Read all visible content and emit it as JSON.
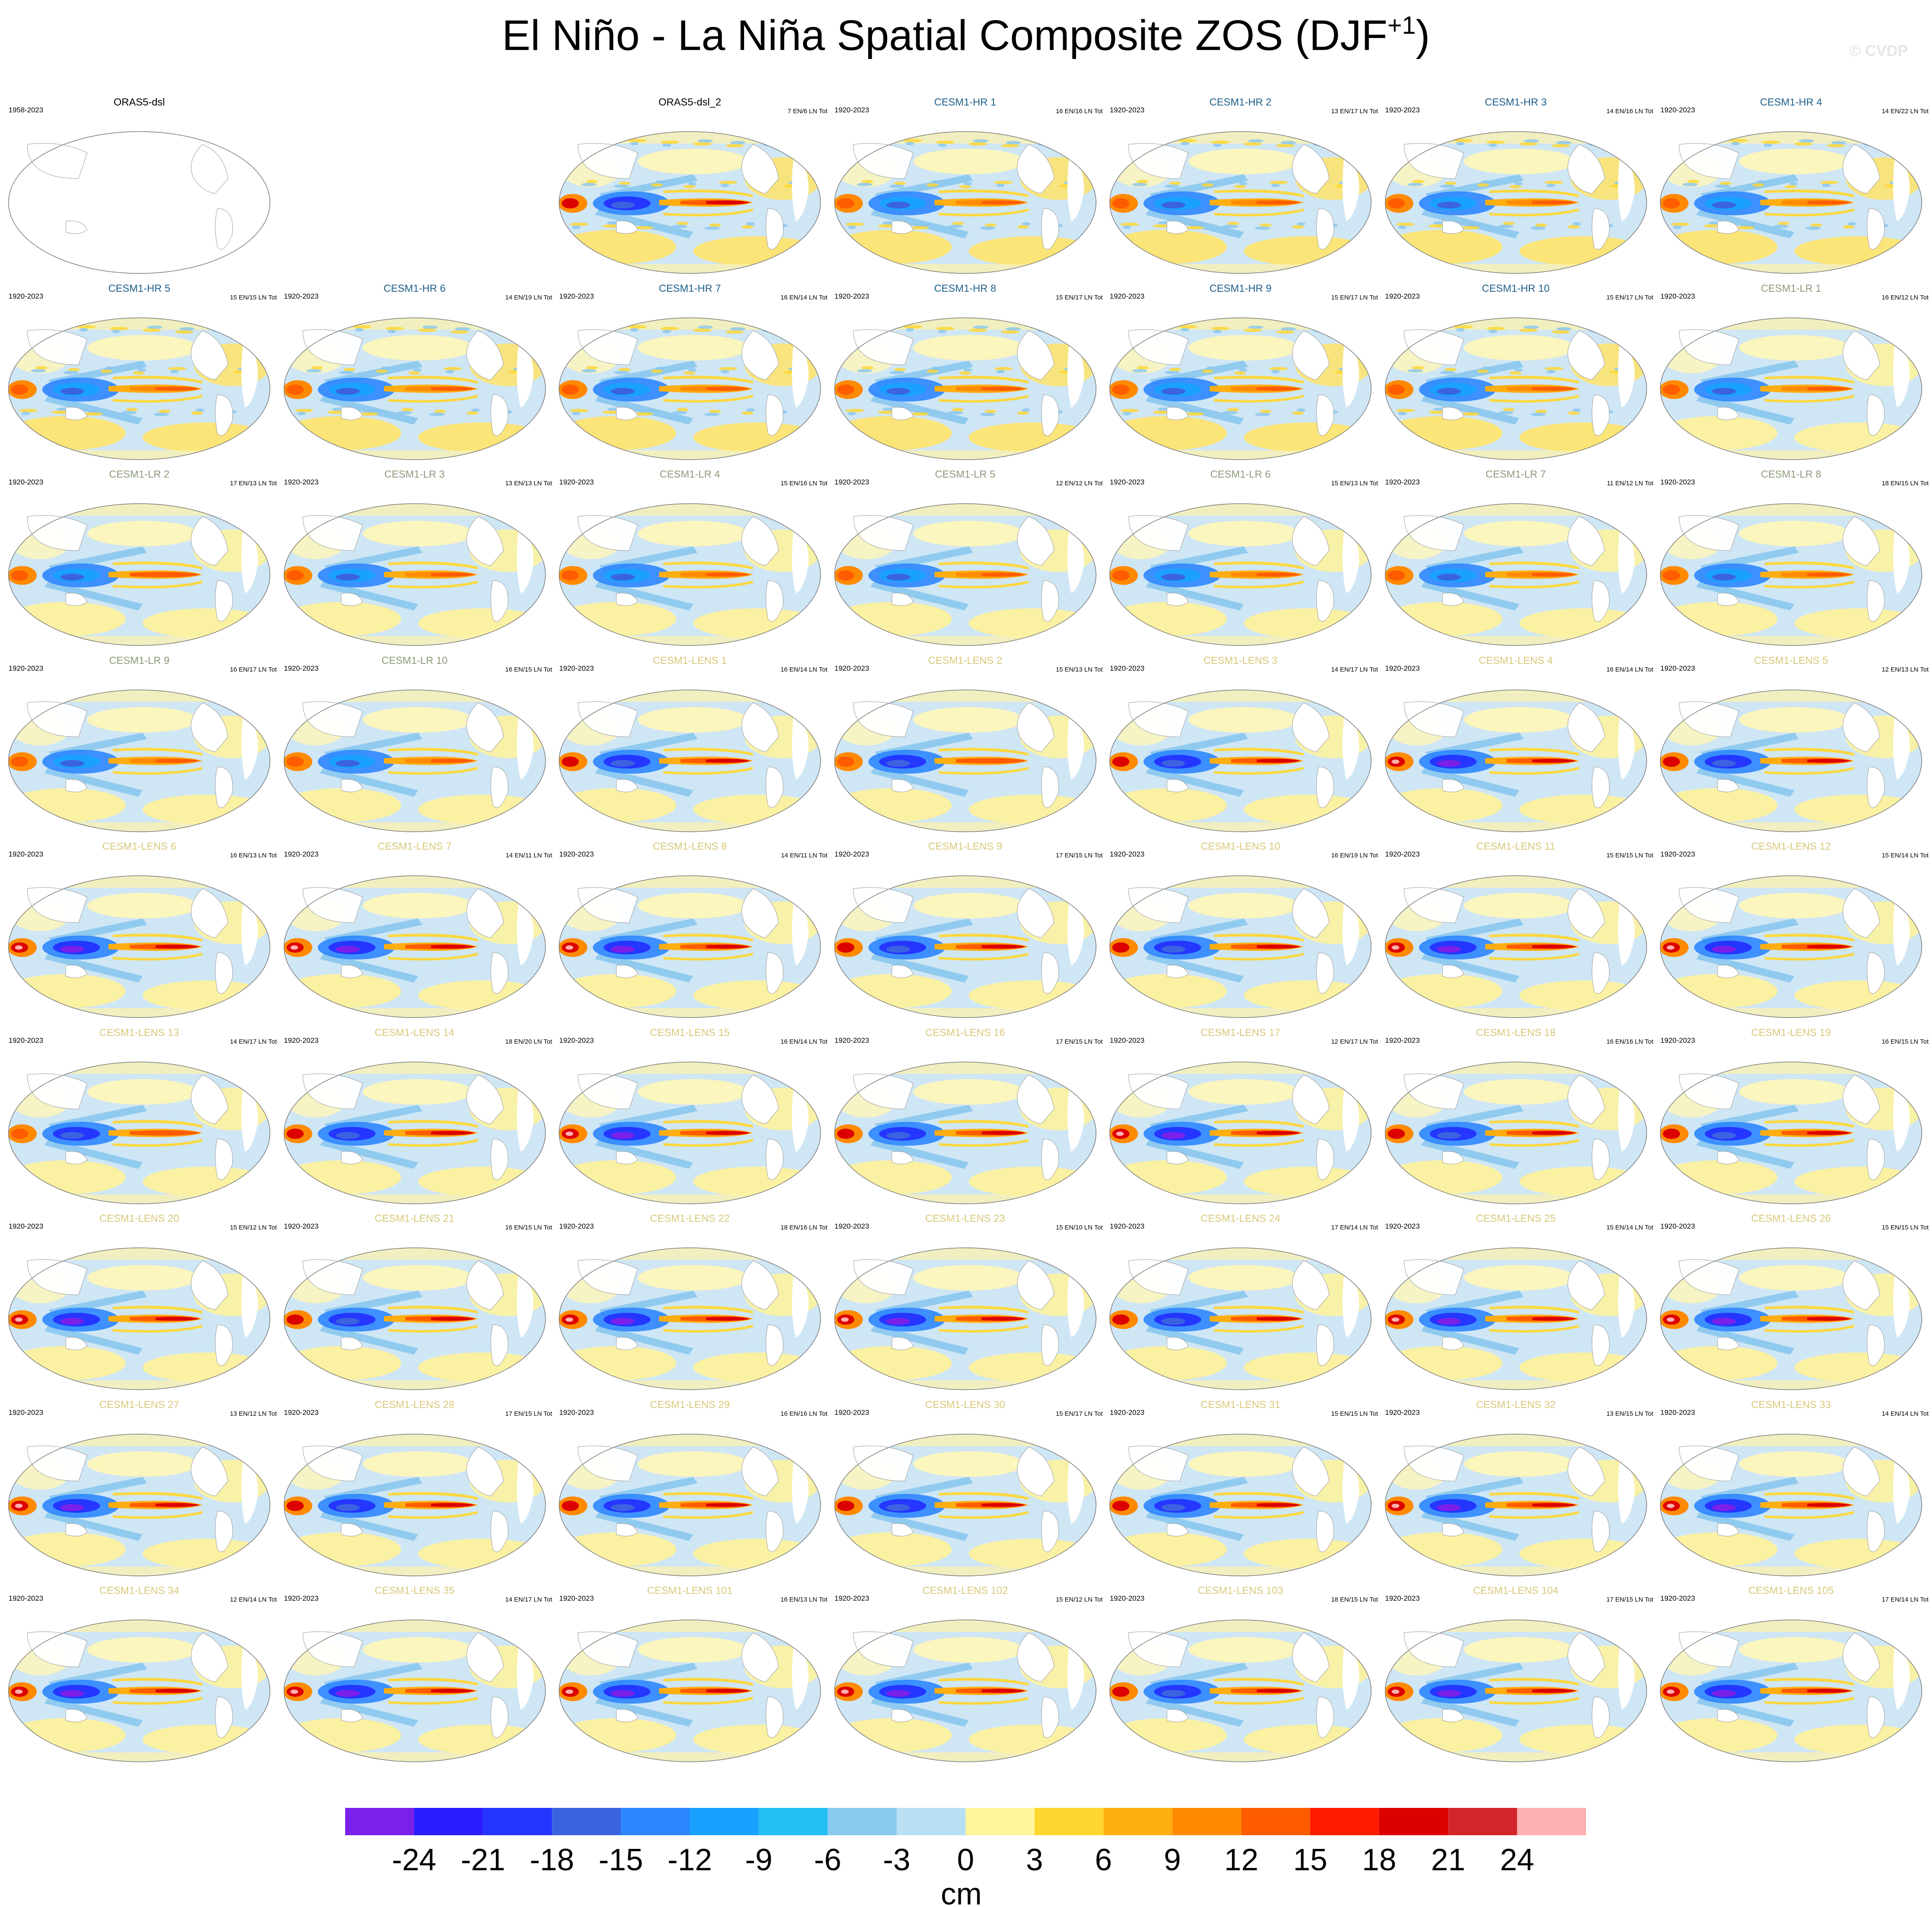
{
  "title": {
    "main": "El Niño - La Niña Spatial Composite ZOS (DJF",
    "superscript": "+1",
    "close": ")"
  },
  "watermark": "© CVDP",
  "colors": {
    "cesm1_hr": "#1f5f8a",
    "cesm1_lr": "#8c9a7a",
    "cesm1_lens": "#d8c87a",
    "observation": "#000000"
  },
  "chart_data": {
    "type": "heatmap",
    "variable": "ZOS",
    "season": "DJF+1",
    "units": "cm",
    "map_projection": "global ellipse (Pacific-centered)",
    "colorbar": {
      "ticks": [
        -24,
        -21,
        -18,
        -15,
        -12,
        -9,
        -6,
        -3,
        0,
        3,
        6,
        9,
        12,
        15,
        18,
        21,
        24
      ],
      "colors": [
        "#7a20e8",
        "#2a1cff",
        "#2436ff",
        "#3b63e0",
        "#2c86ff",
        "#1aa0ff",
        "#24bff5",
        "#88cbef",
        "#b9dff3",
        "#fff59a",
        "#ffd62e",
        "#ffae12",
        "#ff8a00",
        "#ff5c00",
        "#ff1a00",
        "#dc0000",
        "#d0262a",
        "#ffb0b0"
      ],
      "label": "cm"
    },
    "panels": [
      {
        "name": "ORAS5-dsl",
        "years": "1958-2023",
        "counts": "",
        "group": "observation",
        "empty": true
      },
      {
        "name": "ORAS5-dsl_2",
        "years": "",
        "counts": "7 EN/6 LN Tot",
        "group": "observation",
        "empty": false,
        "strength": 0.85
      },
      {
        "name": "CESM1-HR 1",
        "years": "1920-2023",
        "counts": "16 EN/16 LN Tot",
        "group": "cesm1_hr",
        "empty": false,
        "strength": 0.55
      },
      {
        "name": "CESM1-HR 2",
        "years": "1920-2023",
        "counts": "13 EN/17 LN Tot",
        "group": "cesm1_hr",
        "empty": false,
        "strength": 0.5
      },
      {
        "name": "CESM1-HR 3",
        "years": "1920-2023",
        "counts": "14 EN/16 LN Tot",
        "group": "cesm1_hr",
        "empty": false,
        "strength": 0.55
      },
      {
        "name": "CESM1-HR 4",
        "years": "1920-2023",
        "counts": "14 EN/22 LN Tot",
        "group": "cesm1_hr",
        "empty": false,
        "strength": 0.55
      },
      {
        "name": "CESM1-HR 5",
        "years": "1920-2023",
        "counts": "15 EN/15 LN Tot",
        "group": "cesm1_hr",
        "empty": false,
        "strength": 0.55
      },
      {
        "name": "CESM1-HR 6",
        "years": "1920-2023",
        "counts": "14 EN/19 LN Tot",
        "group": "cesm1_hr",
        "empty": false,
        "strength": 0.5
      },
      {
        "name": "CESM1-HR 7",
        "years": "1920-2023",
        "counts": "16 EN/14 LN Tot",
        "group": "cesm1_hr",
        "empty": false,
        "strength": 0.55
      },
      {
        "name": "CESM1-HR 8",
        "years": "1920-2023",
        "counts": "15 EN/17 LN Tot",
        "group": "cesm1_hr",
        "empty": false,
        "strength": 0.5
      },
      {
        "name": "CESM1-HR 9",
        "years": "1920-2023",
        "counts": "15 EN/17 LN Tot",
        "group": "cesm1_hr",
        "empty": false,
        "strength": 0.55
      },
      {
        "name": "CESM1-HR 10",
        "years": "1920-2023",
        "counts": "15 EN/17 LN Tot",
        "group": "cesm1_hr",
        "empty": false,
        "strength": 0.55
      },
      {
        "name": "CESM1-LR 1",
        "years": "1920-2023",
        "counts": "16 EN/12 LN Tot",
        "group": "cesm1_lr",
        "empty": false,
        "strength": 0.5
      },
      {
        "name": "CESM1-LR 2",
        "years": "1920-2023",
        "counts": "17 EN/13 LN Tot",
        "group": "cesm1_lr",
        "empty": false,
        "strength": 0.75
      },
      {
        "name": "CESM1-LR 3",
        "years": "1920-2023",
        "counts": "13 EN/13 LN Tot",
        "group": "cesm1_lr",
        "empty": false,
        "strength": 0.7
      },
      {
        "name": "CESM1-LR 4",
        "years": "1920-2023",
        "counts": "15 EN/16 LN Tot",
        "group": "cesm1_lr",
        "empty": false,
        "strength": 0.6
      },
      {
        "name": "CESM1-LR 5",
        "years": "1920-2023",
        "counts": "12 EN/12 LN Tot",
        "group": "cesm1_lr",
        "empty": false,
        "strength": 0.65
      },
      {
        "name": "CESM1-LR 6",
        "years": "1920-2023",
        "counts": "15 EN/13 LN Tot",
        "group": "cesm1_lr",
        "empty": false,
        "strength": 0.6
      },
      {
        "name": "CESM1-LR 7",
        "years": "1920-2023",
        "counts": "11 EN/12 LN Tot",
        "group": "cesm1_lr",
        "empty": false,
        "strength": 0.6
      },
      {
        "name": "CESM1-LR 8",
        "years": "1920-2023",
        "counts": "18 EN/15 LN Tot",
        "group": "cesm1_lr",
        "empty": false,
        "strength": 0.65
      },
      {
        "name": "CESM1-LR 9",
        "years": "1920-2023",
        "counts": "16 EN/17 LN Tot",
        "group": "cesm1_lr",
        "empty": false,
        "strength": 0.7
      },
      {
        "name": "CESM1-LR 10",
        "years": "1920-2023",
        "counts": "16 EN/15 LN Tot",
        "group": "cesm1_lr",
        "empty": false,
        "strength": 0.7
      },
      {
        "name": "CESM1-LENS 1",
        "years": "1920-2023",
        "counts": "16 EN/14 LN Tot",
        "group": "cesm1_lens",
        "empty": false,
        "strength": 0.85
      },
      {
        "name": "CESM1-LENS 2",
        "years": "1920-2023",
        "counts": "15 EN/13 LN Tot",
        "group": "cesm1_lens",
        "empty": false,
        "strength": 0.8
      },
      {
        "name": "CESM1-LENS 3",
        "years": "1920-2023",
        "counts": "14 EN/17 LN Tot",
        "group": "cesm1_lens",
        "empty": false,
        "strength": 0.85
      },
      {
        "name": "CESM1-LENS 4",
        "years": "1920-2023",
        "counts": "16 EN/14 LN Tot",
        "group": "cesm1_lens",
        "empty": false,
        "strength": 0.9
      },
      {
        "name": "CESM1-LENS 5",
        "years": "1920-2023",
        "counts": "12 EN/13 LN Tot",
        "group": "cesm1_lens",
        "empty": false,
        "strength": 0.85
      },
      {
        "name": "CESM1-LENS 6",
        "years": "1920-2023",
        "counts": "16 EN/13 LN Tot",
        "group": "cesm1_lens",
        "empty": false,
        "strength": 0.9
      },
      {
        "name": "CESM1-LENS 7",
        "years": "1920-2023",
        "counts": "14 EN/11 LN Tot",
        "group": "cesm1_lens",
        "empty": false,
        "strength": 0.9
      },
      {
        "name": "CESM1-LENS 8",
        "years": "1920-2023",
        "counts": "14 EN/11 LN Tot",
        "group": "cesm1_lens",
        "empty": false,
        "strength": 0.9
      },
      {
        "name": "CESM1-LENS 9",
        "years": "1920-2023",
        "counts": "17 EN/15 LN Tot",
        "group": "cesm1_lens",
        "empty": false,
        "strength": 0.85
      },
      {
        "name": "CESM1-LENS 10",
        "years": "1920-2023",
        "counts": "16 EN/19 LN Tot",
        "group": "cesm1_lens",
        "empty": false,
        "strength": 0.85
      },
      {
        "name": "CESM1-LENS 11",
        "years": "1920-2023",
        "counts": "15 EN/15 LN Tot",
        "group": "cesm1_lens",
        "empty": false,
        "strength": 0.9
      },
      {
        "name": "CESM1-LENS 12",
        "years": "1920-2023",
        "counts": "15 EN/14 LN Tot",
        "group": "cesm1_lens",
        "empty": false,
        "strength": 0.9
      },
      {
        "name": "CESM1-LENS 13",
        "years": "1920-2023",
        "counts": "14 EN/17 LN Tot",
        "group": "cesm1_lens",
        "empty": false,
        "strength": 0.8
      },
      {
        "name": "CESM1-LENS 14",
        "years": "1920-2023",
        "counts": "18 EN/20 LN Tot",
        "group": "cesm1_lens",
        "empty": false,
        "strength": 0.85
      },
      {
        "name": "CESM1-LENS 15",
        "years": "1920-2023",
        "counts": "16 EN/14 LN Tot",
        "group": "cesm1_lens",
        "empty": false,
        "strength": 0.9
      },
      {
        "name": "CESM1-LENS 16",
        "years": "1920-2023",
        "counts": "17 EN/15 LN Tot",
        "group": "cesm1_lens",
        "empty": false,
        "strength": 0.85
      },
      {
        "name": "CESM1-LENS 17",
        "years": "1920-2023",
        "counts": "12 EN/17 LN Tot",
        "group": "cesm1_lens",
        "empty": false,
        "strength": 0.95
      },
      {
        "name": "CESM1-LENS 18",
        "years": "1920-2023",
        "counts": "16 EN/16 LN Tot",
        "group": "cesm1_lens",
        "empty": false,
        "strength": 0.85
      },
      {
        "name": "CESM1-LENS 19",
        "years": "1920-2023",
        "counts": "16 EN/15 LN Tot",
        "group": "cesm1_lens",
        "empty": false,
        "strength": 0.85
      },
      {
        "name": "CESM1-LENS 20",
        "years": "1920-2023",
        "counts": "15 EN/12 LN Tot",
        "group": "cesm1_lens",
        "empty": false,
        "strength": 0.9
      },
      {
        "name": "CESM1-LENS 21",
        "years": "1920-2023",
        "counts": "16 EN/15 LN Tot",
        "group": "cesm1_lens",
        "empty": false,
        "strength": 0.85
      },
      {
        "name": "CESM1-LENS 22",
        "years": "1920-2023",
        "counts": "18 EN/16 LN Tot",
        "group": "cesm1_lens",
        "empty": false,
        "strength": 0.9
      },
      {
        "name": "CESM1-LENS 23",
        "years": "1920-2023",
        "counts": "15 EN/10 LN Tot",
        "group": "cesm1_lens",
        "empty": false,
        "strength": 0.95
      },
      {
        "name": "CESM1-LENS 24",
        "years": "1920-2023",
        "counts": "17 EN/14 LN Tot",
        "group": "cesm1_lens",
        "empty": false,
        "strength": 0.85
      },
      {
        "name": "CESM1-LENS 25",
        "years": "1920-2023",
        "counts": "15 EN/14 LN Tot",
        "group": "cesm1_lens",
        "empty": false,
        "strength": 0.9
      },
      {
        "name": "CESM1-LENS 26",
        "years": "1920-2023",
        "counts": "15 EN/15 LN Tot",
        "group": "cesm1_lens",
        "empty": false,
        "strength": 0.9
      },
      {
        "name": "CESM1-LENS 27",
        "years": "1920-2023",
        "counts": "13 EN/12 LN Tot",
        "group": "cesm1_lens",
        "empty": false,
        "strength": 0.9
      },
      {
        "name": "CESM1-LENS 28",
        "years": "1920-2023",
        "counts": "17 EN/15 LN Tot",
        "group": "cesm1_lens",
        "empty": false,
        "strength": 0.85
      },
      {
        "name": "CESM1-LENS 29",
        "years": "1920-2023",
        "counts": "16 EN/16 LN Tot",
        "group": "cesm1_lens",
        "empty": false,
        "strength": 0.85
      },
      {
        "name": "CESM1-LENS 30",
        "years": "1920-2023",
        "counts": "15 EN/17 LN Tot",
        "group": "cesm1_lens",
        "empty": false,
        "strength": 0.85
      },
      {
        "name": "CESM1-LENS 31",
        "years": "1920-2023",
        "counts": "15 EN/15 LN Tot",
        "group": "cesm1_lens",
        "empty": false,
        "strength": 0.85
      },
      {
        "name": "CESM1-LENS 32",
        "years": "1920-2023",
        "counts": "13 EN/15 LN Tot",
        "group": "cesm1_lens",
        "empty": false,
        "strength": 0.9
      },
      {
        "name": "CESM1-LENS 33",
        "years": "1920-2023",
        "counts": "14 EN/14 LN Tot",
        "group": "cesm1_lens",
        "empty": false,
        "strength": 0.9
      },
      {
        "name": "CESM1-LENS 34",
        "years": "1920-2023",
        "counts": "12 EN/14 LN Tot",
        "group": "cesm1_lens",
        "empty": false,
        "strength": 0.95
      },
      {
        "name": "CESM1-LENS 35",
        "years": "1920-2023",
        "counts": "14 EN/17 LN Tot",
        "group": "cesm1_lens",
        "empty": false,
        "strength": 0.9
      },
      {
        "name": "CESM1-LENS 101",
        "years": "1920-2023",
        "counts": "16 EN/13 LN Tot",
        "group": "cesm1_lens",
        "empty": false,
        "strength": 0.95
      },
      {
        "name": "CESM1-LENS 102",
        "years": "1920-2023",
        "counts": "15 EN/12 LN Tot",
        "group": "cesm1_lens",
        "empty": false,
        "strength": 0.9
      },
      {
        "name": "CESM1-LENS 103",
        "years": "1920-2023",
        "counts": "18 EN/15 LN Tot",
        "group": "cesm1_lens",
        "empty": false,
        "strength": 0.85
      },
      {
        "name": "CESM1-LENS 104",
        "years": "1920-2023",
        "counts": "17 EN/15 LN Tot",
        "group": "cesm1_lens",
        "empty": false,
        "strength": 0.9
      },
      {
        "name": "CESM1-LENS 105",
        "years": "1920-2023",
        "counts": "17 EN/14 LN Tot",
        "group": "cesm1_lens",
        "empty": false,
        "strength": 0.9
      }
    ]
  }
}
